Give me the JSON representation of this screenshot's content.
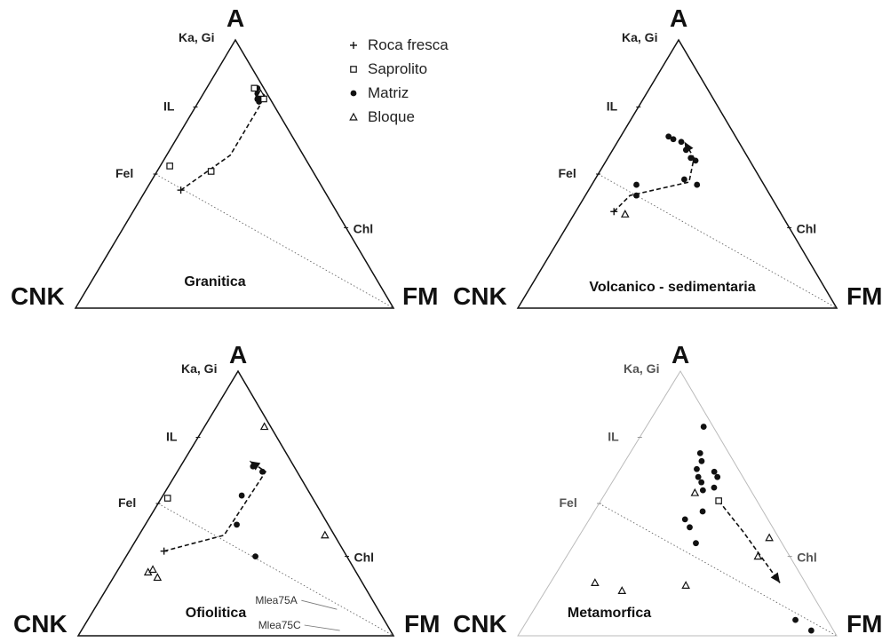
{
  "chart_data": {
    "type": "scatter",
    "subtype": "ternary",
    "legend": {
      "placement": "top",
      "entries": [
        {
          "label": "Roca fresca",
          "marker": "cross"
        },
        {
          "label": "Saprolito",
          "marker": "open-square"
        },
        {
          "label": "Matriz",
          "marker": "filled-circle"
        },
        {
          "label": "Bloque",
          "marker": "open-triangle"
        }
      ]
    },
    "reference_points": [
      {
        "label": "Ka, Gi",
        "coords": [
          1.0,
          0.0
        ]
      },
      {
        "label": "IL",
        "coords": [
          0.75,
          0.0
        ]
      },
      {
        "label": "Fel",
        "coords": [
          0.5,
          0.0
        ]
      },
      {
        "label": "Chl",
        "coords": [
          0.3,
          0.7
        ]
      }
    ],
    "axis_labels": {
      "top": "A",
      "left": "CNK",
      "right": "FM"
    },
    "panels": [
      {
        "title": "Granitica",
        "triangle_style": "solid",
        "points": [
          {
            "series": "Roca fresca",
            "coords": [
              0.44,
              0.11
            ]
          },
          {
            "series": "Saprolito",
            "coords": [
              0.53,
              0.03
            ]
          },
          {
            "series": "Saprolito",
            "coords": [
              0.51,
              0.17
            ]
          },
          {
            "series": "Matriz",
            "coords": [
              0.82,
              0.16
            ]
          },
          {
            "series": "Matriz",
            "coords": [
              0.8,
              0.17
            ]
          },
          {
            "series": "Matriz",
            "coords": [
              0.78,
              0.18
            ]
          },
          {
            "series": "Matriz",
            "coords": [
              0.77,
              0.19
            ]
          },
          {
            "series": "Matriz",
            "coords": [
              0.79,
              0.19
            ]
          },
          {
            "series": "Saprolito",
            "coords": [
              0.82,
              0.15
            ]
          },
          {
            "series": "Saprolito",
            "coords": [
              0.78,
              0.2
            ]
          },
          {
            "series": "Bloque",
            "coords": [
              0.8,
              0.18
            ]
          }
        ],
        "trend_path": [
          [
            0.44,
            0.11
          ],
          [
            0.57,
            0.2
          ],
          [
            0.76,
            0.2
          ],
          [
            0.81,
            0.16
          ]
        ]
      },
      {
        "title": "Volcanico - sedimentaria",
        "triangle_style": "solid",
        "points": [
          {
            "series": "Roca fresca",
            "coords": [
              0.36,
              0.12
            ]
          },
          {
            "series": "Bloque",
            "coords": [
              0.35,
              0.16
            ]
          },
          {
            "series": "Matriz",
            "coords": [
              0.64,
              0.15
            ]
          },
          {
            "series": "Matriz",
            "coords": [
              0.63,
              0.17
            ]
          },
          {
            "series": "Matriz",
            "coords": [
              0.62,
              0.2
            ]
          },
          {
            "series": "Matriz",
            "coords": [
              0.59,
              0.23
            ]
          },
          {
            "series": "Matriz",
            "coords": [
              0.56,
              0.26
            ]
          },
          {
            "series": "Matriz",
            "coords": [
              0.55,
              0.28
            ]
          },
          {
            "series": "Matriz",
            "coords": [
              0.46,
              0.14
            ]
          },
          {
            "series": "Matriz",
            "coords": [
              0.42,
              0.16
            ]
          },
          {
            "series": "Matriz",
            "coords": [
              0.48,
              0.28
            ]
          },
          {
            "series": "Matriz",
            "coords": [
              0.46,
              0.33
            ]
          }
        ],
        "trend_path": [
          [
            0.36,
            0.12
          ],
          [
            0.42,
            0.14
          ],
          [
            0.47,
            0.3
          ],
          [
            0.56,
            0.27
          ],
          [
            0.62,
            0.21
          ]
        ]
      },
      {
        "title": "Ofiolitica",
        "triangle_style": "solid",
        "points": [
          {
            "series": "Roca fresca",
            "coords": [
              0.32,
              0.11
            ]
          },
          {
            "series": "Saprolito",
            "coords": [
              0.52,
              0.02
            ]
          },
          {
            "series": "Bloque",
            "coords": [
              0.79,
              0.19
            ]
          },
          {
            "series": "Bloque",
            "coords": [
              0.38,
              0.59
            ]
          },
          {
            "series": "Bloque",
            "coords": [
              0.24,
              0.1
            ]
          },
          {
            "series": "Bloque",
            "coords": [
              0.25,
              0.11
            ]
          },
          {
            "series": "Bloque",
            "coords": [
              0.22,
              0.14
            ]
          },
          {
            "series": "Matriz",
            "coords": [
              0.64,
              0.23
            ]
          },
          {
            "series": "Matriz",
            "coords": [
              0.62,
              0.27
            ]
          },
          {
            "series": "Matriz",
            "coords": [
              0.53,
              0.25
            ]
          },
          {
            "series": "Matriz",
            "coords": [
              0.42,
              0.29
            ]
          },
          {
            "series": "Matriz",
            "coords": [
              0.3,
              0.41
            ]
          }
        ],
        "annotations": [
          {
            "text": "Mlea75A",
            "coords": [
              0.1,
              0.77
            ]
          },
          {
            "text": "Mlea75C",
            "coords": [
              0.02,
              0.82
            ]
          }
        ],
        "trend_path": [
          [
            0.32,
            0.11
          ],
          [
            0.38,
            0.27
          ],
          [
            0.62,
            0.28
          ],
          [
            0.66,
            0.21
          ]
        ]
      },
      {
        "title": "Metamorfica",
        "triangle_style": "thin",
        "points": [
          {
            "series": "Saprolito",
            "coords": [
              0.51,
              0.37
            ]
          },
          {
            "series": "Bloque",
            "coords": [
              0.54,
              0.28
            ]
          },
          {
            "series": "Bloque",
            "coords": [
              0.37,
              0.6
            ]
          },
          {
            "series": "Bloque",
            "coords": [
              0.3,
              0.6
            ]
          },
          {
            "series": "Bloque",
            "coords": [
              0.17,
              0.24
            ]
          },
          {
            "series": "Bloque",
            "coords": [
              0.2,
              0.14
            ]
          },
          {
            "series": "Bloque",
            "coords": [
              0.19,
              0.43
            ]
          },
          {
            "series": "Matriz",
            "coords": [
              0.69,
              0.22
            ]
          },
          {
            "series": "Matriz",
            "coords": [
              0.66,
              0.24
            ]
          },
          {
            "series": "Matriz",
            "coords": [
              0.63,
              0.24
            ]
          },
          {
            "series": "Matriz",
            "coords": [
              0.6,
              0.26
            ]
          },
          {
            "series": "Matriz",
            "coords": [
              0.58,
              0.28
            ]
          },
          {
            "series": "Matriz",
            "coords": [
              0.55,
              0.3
            ]
          },
          {
            "series": "Matriz",
            "coords": [
              0.62,
              0.3
            ]
          },
          {
            "series": "Matriz",
            "coords": [
              0.6,
              0.32
            ]
          },
          {
            "series": "Matriz",
            "coords": [
              0.56,
              0.33
            ]
          },
          {
            "series": "Matriz",
            "coords": [
              0.47,
              0.34
            ]
          },
          {
            "series": "Matriz",
            "coords": [
              0.44,
              0.3
            ]
          },
          {
            "series": "Matriz",
            "coords": [
              0.79,
              0.18
            ]
          },
          {
            "series": "Matriz",
            "coords": [
              0.41,
              0.33
            ]
          },
          {
            "series": "Matriz",
            "coords": [
              0.06,
              0.84
            ]
          },
          {
            "series": "Matriz",
            "coords": [
              0.02,
              0.91
            ]
          },
          {
            "series": "Matriz",
            "coords": [
              0.35,
              0.38
            ]
          }
        ],
        "trend_path": [
          [
            0.51,
            0.37
          ],
          [
            0.39,
            0.51
          ],
          [
            0.2,
            0.72
          ]
        ]
      }
    ]
  }
}
